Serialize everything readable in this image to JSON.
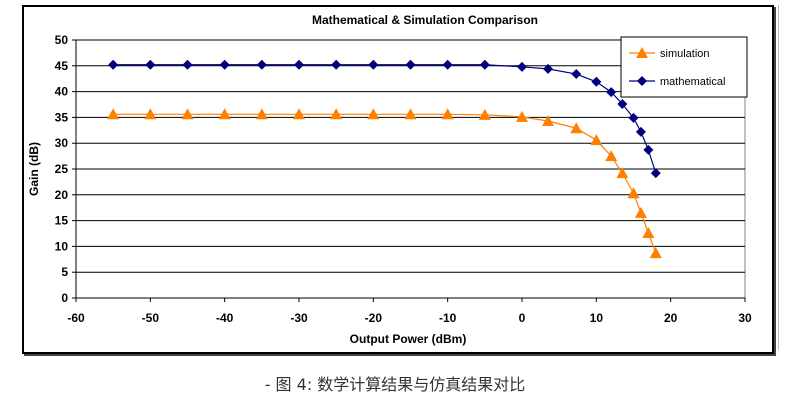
{
  "chart_data": {
    "type": "line",
    "title": "Mathematical & Simulation Comparison",
    "xlabel": "Output Power (dBm)",
    "ylabel": "Gain (dB)",
    "xlim": [
      -60,
      30
    ],
    "ylim": [
      0,
      50
    ],
    "xticks": [
      -60,
      -50,
      -40,
      -30,
      -20,
      -10,
      0,
      10,
      20,
      30
    ],
    "yticks": [
      0,
      5,
      10,
      15,
      20,
      25,
      30,
      35,
      40,
      45,
      50
    ],
    "grid": "horizontal",
    "legend": "top-right",
    "series": [
      {
        "name": "simulation",
        "color": "#FF7F00",
        "marker": "triangle",
        "x": [
          -55,
          -50,
          -45,
          -40,
          -35,
          -30,
          -25,
          -20,
          -15,
          -10,
          -5,
          0,
          3.5,
          7.3,
          10,
          12,
          13.5,
          15,
          16,
          17,
          18
        ],
        "y": [
          35.6,
          35.6,
          35.6,
          35.6,
          35.6,
          35.6,
          35.6,
          35.6,
          35.6,
          35.6,
          35.5,
          35.1,
          34.3,
          32.9,
          30.6,
          27.5,
          24.2,
          20.3,
          16.5,
          12.6,
          8.7
        ]
      },
      {
        "name": "mathematical",
        "color": "#00007F",
        "marker": "diamond",
        "x": [
          -55,
          -50,
          -45,
          -40,
          -35,
          -30,
          -25,
          -20,
          -15,
          -10,
          -5,
          0,
          3.5,
          7.3,
          10,
          12,
          13.5,
          15,
          16,
          17,
          18
        ],
        "y": [
          45.2,
          45.2,
          45.2,
          45.2,
          45.2,
          45.2,
          45.2,
          45.2,
          45.2,
          45.2,
          45.2,
          44.8,
          44.4,
          43.4,
          41.9,
          39.9,
          37.6,
          34.9,
          32.2,
          28.7,
          24.2
        ]
      }
    ]
  },
  "caption": "- 图 4:  数学计算结果与仿真结果对比"
}
